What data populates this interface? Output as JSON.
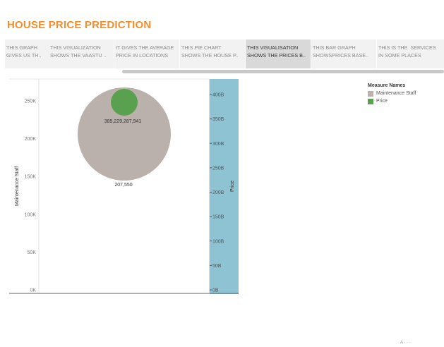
{
  "dashboard": {
    "title": "HOUSE PRICE PREDICTION"
  },
  "story_points": [
    {
      "line1": "THIS GRAPH",
      "line2": "GIVES US TH..",
      "active": false
    },
    {
      "line1": "THIS VISUALIZATION",
      "line2": "SHOWS THE VAASTU ..",
      "active": false
    },
    {
      "line1": "IT GIVES THE AVERAGE",
      "line2": "PRICE IN LOCATIONS",
      "active": false
    },
    {
      "line1": "THIS PIE CHART",
      "line2": "SHOWS THE HOUSE P..",
      "active": false
    },
    {
      "line1": "THIS VISUALISATION",
      "line2": "SHOWS THE PRICES B..",
      "active": true
    },
    {
      "line1": "THIS BAR GRAPH",
      "line2": "SHOWSPRICES BASE..",
      "active": false
    },
    {
      "line1": "THIS IS THE  SERVICES",
      "line2": "IN SOME PLACES",
      "active": false
    }
  ],
  "legend": {
    "title": "Measure Names",
    "items": [
      {
        "label": "Maintenance Staff",
        "color": "#bab0ac"
      },
      {
        "label": "Price",
        "color": "#59a14f"
      }
    ]
  },
  "chart_data": {
    "type": "scatter",
    "left_axis": {
      "label": "Maintenance Staff",
      "ticks": [
        "0K",
        "50K",
        "100K",
        "150K",
        "200K",
        "250K"
      ],
      "tick_values": [
        0,
        50000,
        100000,
        150000,
        200000,
        250000
      ]
    },
    "right_axis": {
      "label": "Price",
      "ticks": [
        "0B",
        "50B",
        "100B",
        "150B",
        "200B",
        "250B",
        "300B",
        "350B",
        "400B"
      ],
      "tick_values": [
        0,
        50,
        100,
        150,
        200,
        250,
        300,
        350,
        400
      ],
      "unit": "B"
    },
    "series": [
      {
        "name": "Maintenance Staff",
        "value": 207550,
        "label": "207,550",
        "color": "#bab0ac"
      },
      {
        "name": "Price",
        "value": 385229287941,
        "label": "385,229,287,941",
        "color": "#59a14f"
      }
    ],
    "price_band_color": "#8ec3d3"
  },
  "footer": {
    "mark": "A  ·  ·  ·"
  }
}
